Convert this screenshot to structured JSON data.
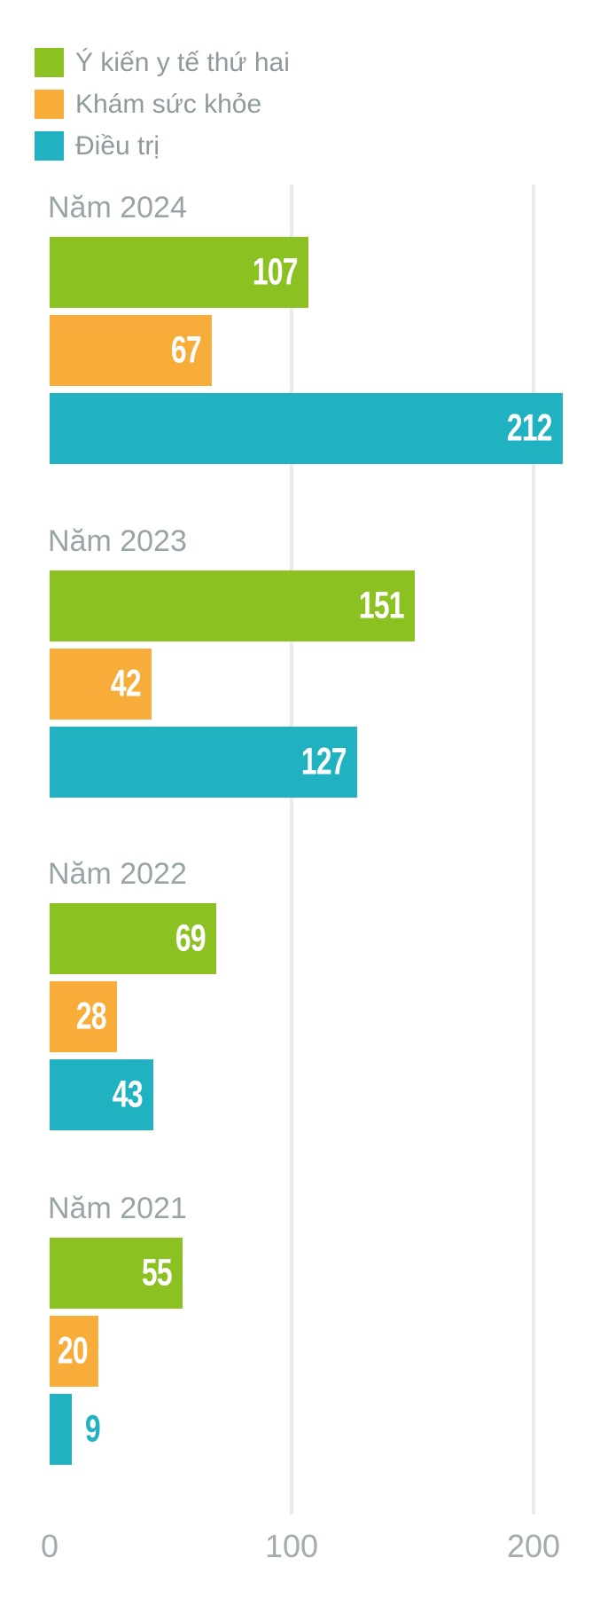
{
  "chart_data": {
    "type": "bar",
    "orientation": "horizontal",
    "title": "",
    "xlabel": "",
    "ylabel": "",
    "xlim": [
      0,
      227
    ],
    "xticks": [
      "0",
      "100",
      "200"
    ],
    "xtick_values": [
      0,
      100,
      200
    ],
    "grid": "vertical",
    "legend_position": "top-left",
    "series": [
      {
        "name": "Ý kiến y tế thứ hai",
        "color": "#8CC122"
      },
      {
        "name": "Khám sức khỏe",
        "color": "#F8AD3A"
      },
      {
        "name": "Điều trị",
        "color": "#20B2C1"
      }
    ],
    "groups": [
      {
        "label": "Năm 2024",
        "values": [
          107,
          67,
          212
        ]
      },
      {
        "label": "Năm 2023",
        "values": [
          151,
          42,
          127
        ]
      },
      {
        "label": "Năm 2022",
        "values": [
          69,
          28,
          43
        ]
      },
      {
        "label": "Năm 2021",
        "values": [
          55,
          20,
          9
        ]
      }
    ]
  },
  "colors": {
    "background": "#ffffff",
    "gridline": "#E9EAEB",
    "group_label_text": "#99A4A6",
    "axis_text": "#A2ACAE",
    "legend_text": "#8F9A9D",
    "value_text_inside": "#ffffff"
  }
}
